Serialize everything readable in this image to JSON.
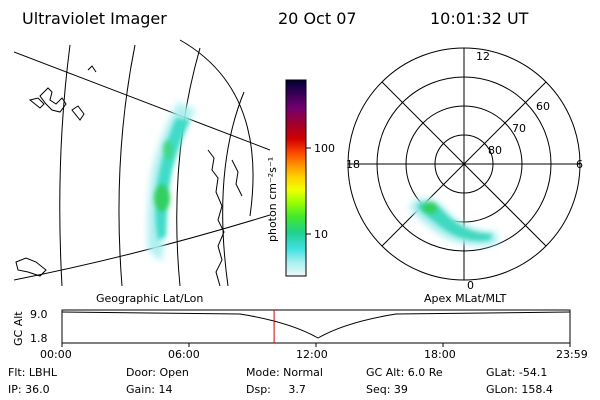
{
  "header": {
    "title": "Ultraviolet Imager",
    "date": "20 Oct 07",
    "time": "10:01:32 UT"
  },
  "geo_panel": {
    "label": "Geographic Lat/Lon"
  },
  "polar_panel": {
    "label": "Apex MLat/MLT",
    "mlt_labels": {
      "top": "12",
      "left": "18",
      "right": "6",
      "bottom": "0"
    },
    "lat_labels": [
      "60",
      "70",
      "80"
    ]
  },
  "colorbar": {
    "unit_label": "photon cm⁻²s⁻¹",
    "ticks": [
      "100",
      "10"
    ],
    "colors": [
      "#000033",
      "#1a0040",
      "#400060",
      "#700070",
      "#900040",
      "#b00020",
      "#d00000",
      "#ff3000",
      "#ff8000",
      "#ffc000",
      "#ffff00",
      "#c8ff00",
      "#80ff00",
      "#30e030",
      "#20d0a0",
      "#40e0e0",
      "#a0f0f0",
      "#e8f8f8"
    ]
  },
  "timeline": {
    "axis_label": "GC Alt",
    "y_ticks": [
      "9.0",
      "1.8"
    ],
    "x_ticks": [
      "00:00",
      "06:00",
      "12:00",
      "18:00",
      "23:59"
    ],
    "current_time_hours": 10.02
  },
  "info": {
    "filter": "Flt: LBHL",
    "ip": "IP: 36.0",
    "door": "Door: Open",
    "gain": "Gain: 14",
    "mode": "Mode: Normal",
    "dsp": "Dsp:     3.7",
    "gc_alt": "GC Alt: 6.0 Re",
    "seq": "Seq: 39",
    "glat": "GLat: -54.1",
    "glon": "GLon: 158.4"
  }
}
